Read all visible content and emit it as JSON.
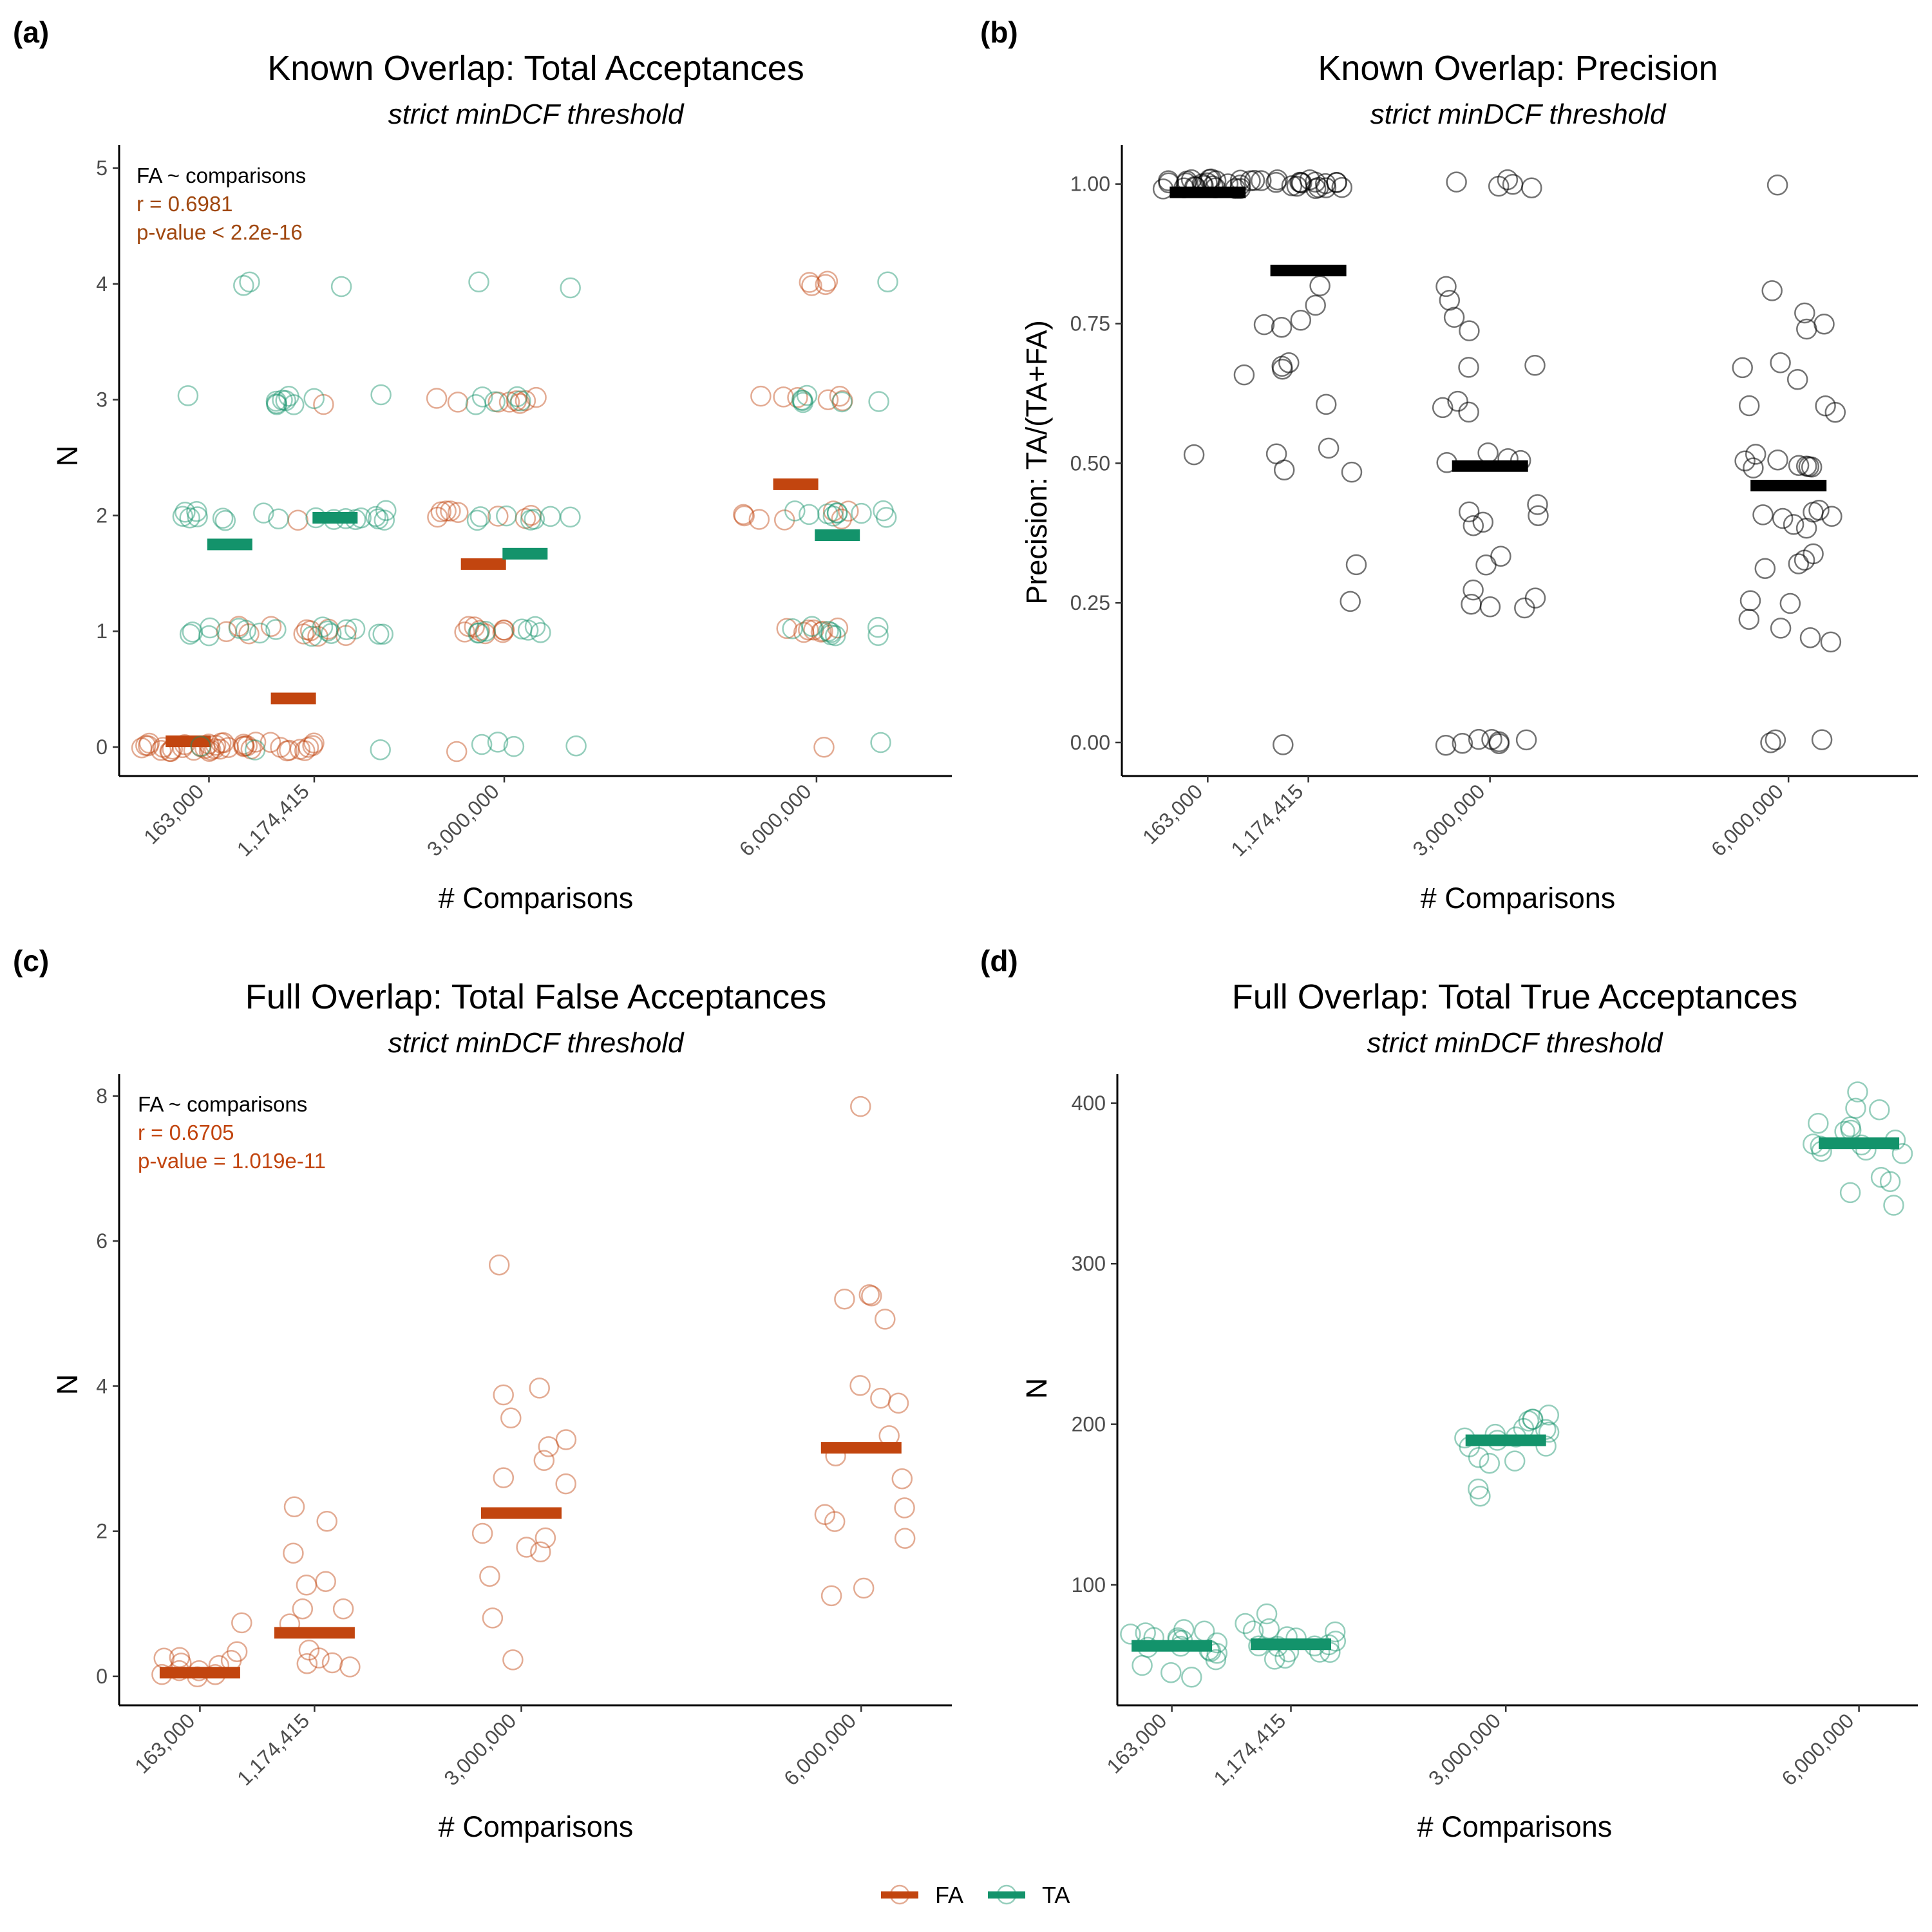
{
  "colors": {
    "FA": "#C2450F",
    "TA": "#13936B",
    "precision": "#000000"
  },
  "legend": [
    {
      "key": "FA",
      "label": "FA"
    },
    {
      "key": "TA",
      "label": "TA"
    }
  ],
  "chart_data": [
    {
      "id": "a",
      "panel_label": "(a)",
      "type": "scatter",
      "title": "Known Overlap: Total Acceptances",
      "subtitle": "strict minDCF threshold",
      "xlabel": "# Comparisons",
      "ylabel": "N",
      "ylim": [
        -0.25,
        5.2
      ],
      "yticks": [
        0,
        1,
        2,
        3,
        4,
        5
      ],
      "ytick_labels": [
        "0",
        "1",
        "2",
        "3",
        "4",
        "5"
      ],
      "xlim": [
        -700000,
        7300000
      ],
      "xticks": [
        163000,
        1174415,
        3000000,
        6000000
      ],
      "xtick_labels": [
        "163,000",
        "1,174,415",
        "3,000,000",
        "6,000,000"
      ],
      "annotation": {
        "lines": [
          "FA ~ comparisons",
          "r = 0.6981",
          "p-value < 2.2e-16"
        ],
        "colors": [
          "#000000",
          "#A0470F",
          "#A0470F"
        ]
      },
      "series": [
        {
          "name": "FA",
          "color": "#C2450F",
          "offset": -200000,
          "groups": [
            {
              "x": 163000,
              "mean": 0.05,
              "points": [
                0,
                0,
                0,
                0,
                0,
                0,
                0,
                0,
                0,
                0,
                0,
                0,
                0,
                0,
                0,
                0,
                0,
                0,
                0,
                0,
                0,
                0,
                0,
                1,
                1
              ]
            },
            {
              "x": 1174415,
              "mean": 0.42,
              "points": [
                0,
                0,
                0,
                0,
                0,
                0,
                0,
                0,
                0,
                0,
                0,
                0,
                0,
                0,
                0,
                1,
                1,
                1,
                1,
                1,
                1,
                1,
                1,
                2,
                3
              ]
            },
            {
              "x": 3000000,
              "mean": 1.58,
              "points": [
                0,
                1,
                1,
                1,
                1,
                1,
                1,
                1,
                1,
                2,
                2,
                2,
                2,
                2,
                2,
                2,
                2,
                3,
                3,
                3,
                3,
                3,
                3,
                3,
                3
              ]
            },
            {
              "x": 6000000,
              "mean": 2.27,
              "points": [
                0,
                1,
                1,
                1,
                1,
                1,
                1,
                1,
                2,
                2,
                2,
                2,
                2,
                2,
                2,
                3,
                3,
                3,
                3,
                3,
                3,
                4,
                4,
                4,
                4
              ]
            }
          ]
        },
        {
          "name": "TA",
          "color": "#13936B",
          "offset": 200000,
          "groups": [
            {
              "x": 163000,
              "mean": 1.75,
              "points": [
                0,
                0,
                1,
                1,
                1,
                1,
                1,
                1,
                1,
                1,
                2,
                2,
                2,
                2,
                2,
                2,
                2,
                2,
                2,
                3,
                3,
                3,
                3,
                4,
                4
              ]
            },
            {
              "x": 1174415,
              "mean": 1.98,
              "points": [
                0,
                1,
                1,
                1,
                1,
                1,
                1,
                1,
                1,
                2,
                2,
                2,
                2,
                2,
                2,
                2,
                2,
                2,
                3,
                3,
                3,
                3,
                3,
                3,
                4
              ]
            },
            {
              "x": 3000000,
              "mean": 1.67,
              "points": [
                0,
                0,
                0,
                0,
                1,
                1,
                1,
                1,
                1,
                1,
                1,
                2,
                2,
                2,
                2,
                2,
                2,
                2,
                3,
                3,
                3,
                3,
                3,
                4,
                4
              ]
            },
            {
              "x": 6000000,
              "mean": 1.83,
              "points": [
                0,
                1,
                1,
                1,
                1,
                1,
                1,
                1,
                1,
                2,
                2,
                2,
                2,
                2,
                2,
                2,
                2,
                2,
                3,
                3,
                3,
                3,
                3,
                3,
                4
              ]
            }
          ]
        }
      ]
    },
    {
      "id": "b",
      "panel_label": "(b)",
      "type": "scatter",
      "title": "Known Overlap: Precision",
      "subtitle": "strict minDCF threshold",
      "xlabel": "# Comparisons",
      "ylabel": "Precision: TA/(TA+FA)",
      "ylim": [
        -0.06,
        1.07
      ],
      "yticks": [
        0,
        0.25,
        0.5,
        0.75,
        1
      ],
      "ytick_labels": [
        "0.00",
        "0.25",
        "0.50",
        "0.75",
        "1.00"
      ],
      "xlim": [
        -700000,
        7300000
      ],
      "xticks": [
        163000,
        1174415,
        3000000,
        6000000
      ],
      "xtick_labels": [
        "163,000",
        "1,174,415",
        "3,000,000",
        "6,000,000"
      ],
      "series": [
        {
          "name": "Precision",
          "color": "#000000",
          "offset": 0,
          "groups": [
            {
              "x": 163000,
              "mean": 0.985,
              "points": [
                1,
                1,
                1,
                1,
                1,
                1,
                1,
                1,
                1,
                1,
                1,
                1,
                1,
                1,
                1,
                1,
                1,
                1,
                1,
                1,
                1,
                1,
                1,
                1,
                0.66,
                0.52
              ]
            },
            {
              "x": 1174415,
              "mean": 0.845,
              "points": [
                1,
                1,
                1,
                1,
                1,
                1,
                1,
                1,
                1,
                1,
                1,
                1,
                1,
                1,
                1,
                1,
                1,
                0.82,
                0.79,
                0.76,
                0.75,
                0.74,
                0.68,
                0.68,
                0.67,
                0.6,
                0.52,
                0.52,
                0.49,
                0.49,
                0.32,
                0.26,
                0
              ]
            },
            {
              "x": 3000000,
              "mean": 0.495,
              "points": [
                1,
                1,
                1,
                1,
                1,
                0.81,
                0.8,
                0.76,
                0.74,
                0.68,
                0.67,
                0.61,
                0.6,
                0.6,
                0.51,
                0.5,
                0.5,
                0.5,
                0.42,
                0.41,
                0.41,
                0.39,
                0.38,
                0.34,
                0.32,
                0.27,
                0.25,
                0.25,
                0.25,
                0.24,
                0,
                0,
                0,
                0,
                0,
                0,
                0
              ]
            },
            {
              "x": 6000000,
              "mean": 0.46,
              "points": [
                1,
                0.8,
                0.77,
                0.75,
                0.74,
                0.68,
                0.67,
                0.65,
                0.61,
                0.6,
                0.6,
                0.51,
                0.5,
                0.5,
                0.5,
                0.5,
                0.5,
                0.5,
                0.49,
                0.41,
                0.41,
                0.41,
                0.4,
                0.4,
                0.39,
                0.38,
                0.33,
                0.32,
                0.32,
                0.32,
                0.26,
                0.25,
                0.22,
                0.2,
                0.18,
                0.18,
                0,
                0,
                0
              ]
            }
          ]
        }
      ]
    },
    {
      "id": "c",
      "panel_label": "(c)",
      "type": "scatter",
      "title": "Full Overlap: Total False Acceptances",
      "subtitle": "strict minDCF threshold",
      "xlabel": "# Comparisons",
      "ylabel": "N",
      "ylim": [
        -0.4,
        8.3
      ],
      "yticks": [
        0,
        2,
        4,
        6,
        8
      ],
      "ytick_labels": [
        "0",
        "2",
        "4",
        "6",
        "8"
      ],
      "xlim": [
        -550000,
        6800000
      ],
      "xticks": [
        163000,
        1174415,
        3000000,
        6000000
      ],
      "xtick_labels": [
        "163,000",
        "1,174,415",
        "3,000,000",
        "6,000,000"
      ],
      "annotation": {
        "lines": [
          "FA ~ comparisons",
          "r = 0.6705",
          "p-value = 1.019e-11"
        ],
        "colors": [
          "#000000",
          "#C2450F",
          "#C2450F"
        ]
      },
      "series": [
        {
          "name": "FA",
          "color": "#C2450F",
          "offset": 0,
          "groups": [
            {
              "x": 163000,
              "mean": 0.05,
              "points": [
                0,
                0,
                0.05,
                0.1,
                0.15,
                0.2,
                0.25,
                0.35,
                0.7,
                0.05,
                0.1,
                0.2
              ]
            },
            {
              "x": 1174415,
              "mean": 0.6,
              "points": [
                2.3,
                2.2,
                1.75,
                1.3,
                1.25,
                0.95,
                0.9,
                0.7,
                0.4,
                0.3,
                0.2,
                0.15,
                0.15
              ]
            },
            {
              "x": 3000000,
              "mean": 2.25,
              "points": [
                5.7,
                4.0,
                3.9,
                3.6,
                3.3,
                3.1,
                2.95,
                2.7,
                2.6,
                1.95,
                1.85,
                1.8,
                1.7,
                1.35,
                0.8,
                0.25
              ]
            },
            {
              "x": 6000000,
              "mean": 3.15,
              "points": [
                7.85,
                5.3,
                5.3,
                5.2,
                4.95,
                4.0,
                3.85,
                3.8,
                3.25,
                3.0,
                2.7,
                2.3,
                2.25,
                2.1,
                1.9,
                1.25,
                1.1
              ]
            }
          ]
        }
      ]
    },
    {
      "id": "d",
      "panel_label": "(d)",
      "type": "scatter",
      "title": "Full Overlap: Total True Acceptances",
      "subtitle": "strict minDCF threshold",
      "xlabel": "# Comparisons",
      "ylabel": "N",
      "ylim": [
        25,
        418
      ],
      "yticks": [
        100,
        200,
        300,
        400
      ],
      "ytick_labels": [
        "100",
        "200",
        "300",
        "400"
      ],
      "xlim": [
        -300000,
        6500000
      ],
      "xticks": [
        163000,
        1174415,
        3000000,
        6000000
      ],
      "xtick_labels": [
        "163,000",
        "1,174,415",
        "3,000,000",
        "6,000,000"
      ],
      "series": [
        {
          "name": "TA",
          "color": "#13936B",
          "offset": 0,
          "groups": [
            {
              "x": 163000,
              "mean": 62,
              "points": [
                74,
                70,
                68,
                66,
                65,
                64,
                63,
                62,
                61,
                60,
                58,
                56,
                54,
                50,
                47,
                45,
                69,
                67
              ]
            },
            {
              "x": 1174415,
              "mean": 63,
              "points": [
                80,
                74,
                72,
                70,
                68,
                66,
                64,
                63,
                62,
                61,
                60,
                58,
                56,
                54,
                52,
                68,
                65
              ]
            },
            {
              "x": 3000000,
              "mean": 190,
              "points": [
                208,
                204,
                201,
                199,
                197,
                195,
                193,
                192,
                190,
                189,
                187,
                185,
                182,
                178,
                176,
                162,
                155,
                200
              ]
            },
            {
              "x": 6000000,
              "mean": 375,
              "points": [
                405,
                398,
                395,
                390,
                388,
                385,
                380,
                378,
                376,
                375,
                373,
                372,
                370,
                368,
                352,
                350,
                342,
                334
              ]
            }
          ]
        }
      ]
    }
  ]
}
